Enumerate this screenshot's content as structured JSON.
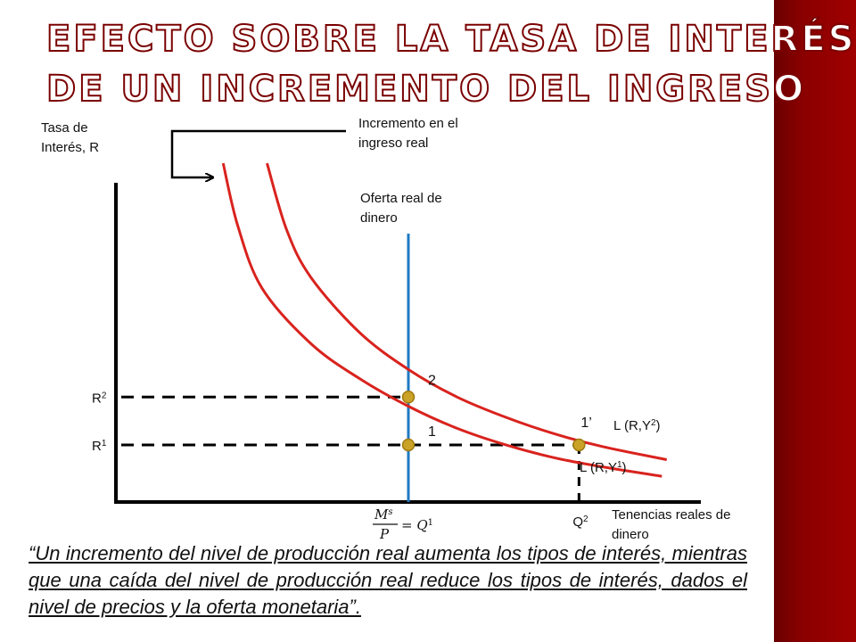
{
  "title": {
    "line1": "Efecto sobre la tasa de interés",
    "line2": "de un incremento del ingreso"
  },
  "caption": "“Un incremento del nivel de producción real aumenta los tipos de interés, mientras que una caída del nivel de producción real reduce los tipos de interés, dados el nivel de precios y la oferta monetaria”.",
  "colors": {
    "accent": "#8b0000",
    "curve": "#d9231e",
    "supply": "#1f7ac4",
    "point": "#c9a227",
    "axis": "#000000"
  },
  "chart_data": {
    "type": "line",
    "title": "",
    "ylabel": "Tasa de Interés, R",
    "xlabel": "Tenencias reales de dinero",
    "arrow_label": "Incremento en el ingreso real",
    "supply_label": "Oferta real de dinero",
    "supply_formula": "Ms/P = Q1",
    "y_ticks": [
      {
        "base": "R",
        "sub": "2"
      },
      {
        "base": "R",
        "sub": "1"
      }
    ],
    "x_ticks": [
      {
        "base": "Q",
        "sub": "2"
      }
    ],
    "series": [
      {
        "name": "L (R,Y1)",
        "label_base": "L (R,Y",
        "label_sub": "1",
        "label_end": ")",
        "x": [
          2.2,
          2.5,
          3,
          4,
          5,
          6,
          7,
          8,
          9,
          10,
          11.2
        ],
        "y": [
          9.2,
          7.5,
          5.8,
          4.3,
          3.35,
          2.6,
          2.0,
          1.55,
          1.2,
          0.95,
          0.7
        ]
      },
      {
        "name": "L (R,Y2)",
        "label_base": "L (R,Y",
        "label_sub": "2",
        "label_end": ")",
        "x": [
          3.1,
          3.5,
          4,
          5,
          6,
          7,
          8,
          9,
          10,
          11.3
        ],
        "y": [
          9.2,
          7.4,
          6.1,
          4.6,
          3.6,
          2.85,
          2.3,
          1.85,
          1.5,
          1.15
        ]
      }
    ],
    "points": [
      {
        "label": "2",
        "x": 6,
        "y": 2.85
      },
      {
        "label": "1",
        "x": 6,
        "y": 1.55
      },
      {
        "label": "1’",
        "x": 9.5,
        "y": 1.55
      }
    ],
    "supply_x": 6,
    "xlim": [
      0,
      12
    ],
    "ylim": [
      0,
      10
    ]
  }
}
